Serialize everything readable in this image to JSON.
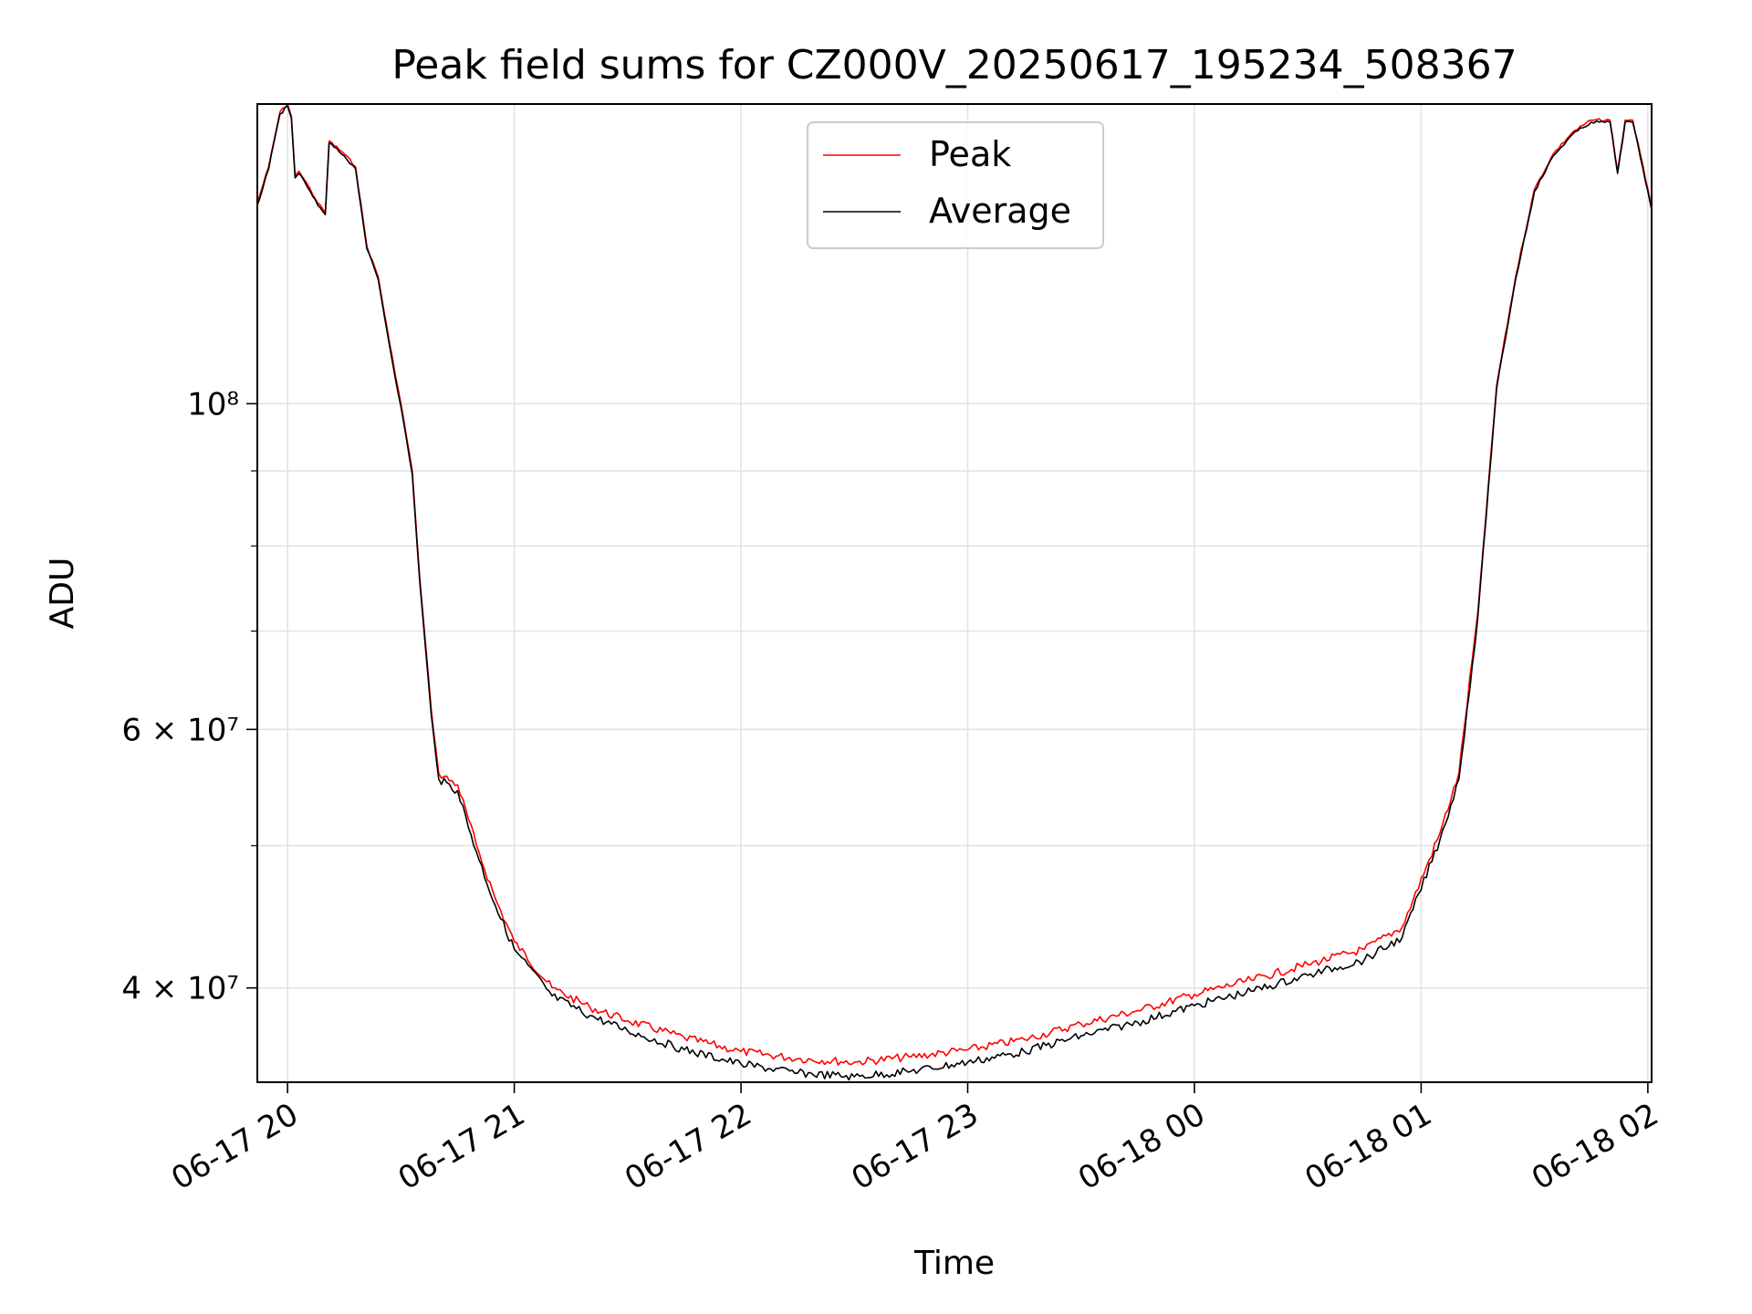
{
  "chart_data": {
    "type": "line",
    "title": "Peak field sums for CZ000V_20250617_195234_508367",
    "xlabel": "Time",
    "ylabel": "ADU",
    "yscale": "log",
    "grid": true,
    "legend_position": "top-center",
    "xlim": [
      "2025-06-17 19:52",
      "2025-06-18 02:01"
    ],
    "ylim": [
      34500000,
      160000000
    ],
    "x_ticks": [
      {
        "value": "2025-06-17 20:00",
        "label": "06-17 20"
      },
      {
        "value": "2025-06-17 21:00",
        "label": "06-17 21"
      },
      {
        "value": "2025-06-17 22:00",
        "label": "06-17 22"
      },
      {
        "value": "2025-06-17 23:00",
        "label": "06-17 23"
      },
      {
        "value": "2025-06-18 00:00",
        "label": "06-18 00"
      },
      {
        "value": "2025-06-18 01:00",
        "label": "06-18 01"
      },
      {
        "value": "2025-06-18 02:00",
        "label": "06-18 02"
      }
    ],
    "y_major_ticks": [
      {
        "value": 40000000,
        "label": "4 × 10⁷"
      },
      {
        "value": 60000000,
        "label": "6 × 10⁷"
      },
      {
        "value": 100000000,
        "label": "10⁸"
      }
    ],
    "y_minor_ticks": [
      50000000,
      70000000,
      80000000,
      90000000
    ],
    "x": [
      "2025-06-17 19:52",
      "2025-06-17 19:55",
      "2025-06-17 19:58",
      "2025-06-17 20:00",
      "2025-06-17 20:01",
      "2025-06-17 20:02",
      "2025-06-17 20:03",
      "2025-06-17 20:06",
      "2025-06-17 20:08",
      "2025-06-17 20:10",
      "2025-06-17 20:11",
      "2025-06-17 20:15",
      "2025-06-17 20:18",
      "2025-06-17 20:21",
      "2025-06-17 20:24",
      "2025-06-17 20:27",
      "2025-06-17 20:30",
      "2025-06-17 20:33",
      "2025-06-17 20:35",
      "2025-06-17 20:38",
      "2025-06-17 20:40",
      "2025-06-17 20:45",
      "2025-06-17 20:50",
      "2025-06-17 20:55",
      "2025-06-17 21:00",
      "2025-06-17 21:10",
      "2025-06-17 21:20",
      "2025-06-17 21:30",
      "2025-06-17 21:45",
      "2025-06-17 22:00",
      "2025-06-17 22:15",
      "2025-06-17 22:30",
      "2025-06-17 22:45",
      "2025-06-17 23:00",
      "2025-06-17 23:15",
      "2025-06-17 23:30",
      "2025-06-17 23:45",
      "2025-06-18 00:00",
      "2025-06-18 00:15",
      "2025-06-18 00:30",
      "2025-06-18 00:45",
      "2025-06-18 00:55",
      "2025-06-18 01:05",
      "2025-06-18 01:10",
      "2025-06-18 01:15",
      "2025-06-18 01:20",
      "2025-06-18 01:25",
      "2025-06-18 01:30",
      "2025-06-18 01:35",
      "2025-06-18 01:40",
      "2025-06-18 01:45",
      "2025-06-18 01:50",
      "2025-06-18 01:52",
      "2025-06-18 01:54",
      "2025-06-18 01:56",
      "2025-06-18 02:00",
      "2025-06-18 02:01"
    ],
    "series": [
      {
        "name": "Peak",
        "color": "#ff0000",
        "values": [
          137000000,
          145000000,
          158000000,
          160000000,
          157000000,
          143000000,
          144000000,
          140000000,
          137000000,
          135000000,
          151000000,
          148000000,
          145000000,
          128000000,
          122000000,
          110000000,
          100000000,
          90000000,
          76000000,
          62000000,
          56000000,
          55000000,
          50000000,
          46000000,
          43000000,
          40000000,
          38800000,
          38000000,
          37000000,
          36200000,
          35800000,
          35600000,
          35900000,
          36300000,
          36900000,
          37800000,
          38600000,
          39600000,
          40500000,
          41500000,
          42500000,
          44000000,
          51000000,
          56000000,
          72000000,
          103000000,
          122000000,
          140000000,
          148000000,
          153000000,
          156000000,
          156000000,
          144000000,
          156000000,
          156000000,
          140000000,
          136000000
        ]
      },
      {
        "name": "Average",
        "color": "#000000",
        "values": [
          136500000,
          144500000,
          157500000,
          159500000,
          156500000,
          142500000,
          143500000,
          139500000,
          136500000,
          134500000,
          150500000,
          147500000,
          144500000,
          127500000,
          121500000,
          109500000,
          99500000,
          89500000,
          75500000,
          61500000,
          55500000,
          54500000,
          49500000,
          45500000,
          42500000,
          39500000,
          38300000,
          37400000,
          36300000,
          35500000,
          35000000,
          34800000,
          35100000,
          35600000,
          36200000,
          37100000,
          37900000,
          38900000,
          39800000,
          40800000,
          41800000,
          43300000,
          50500000,
          55500000,
          71500000,
          102500000,
          121500000,
          139500000,
          147500000,
          152500000,
          155500000,
          155500000,
          143500000,
          155500000,
          155500000,
          139500000,
          135500000
        ]
      }
    ]
  }
}
